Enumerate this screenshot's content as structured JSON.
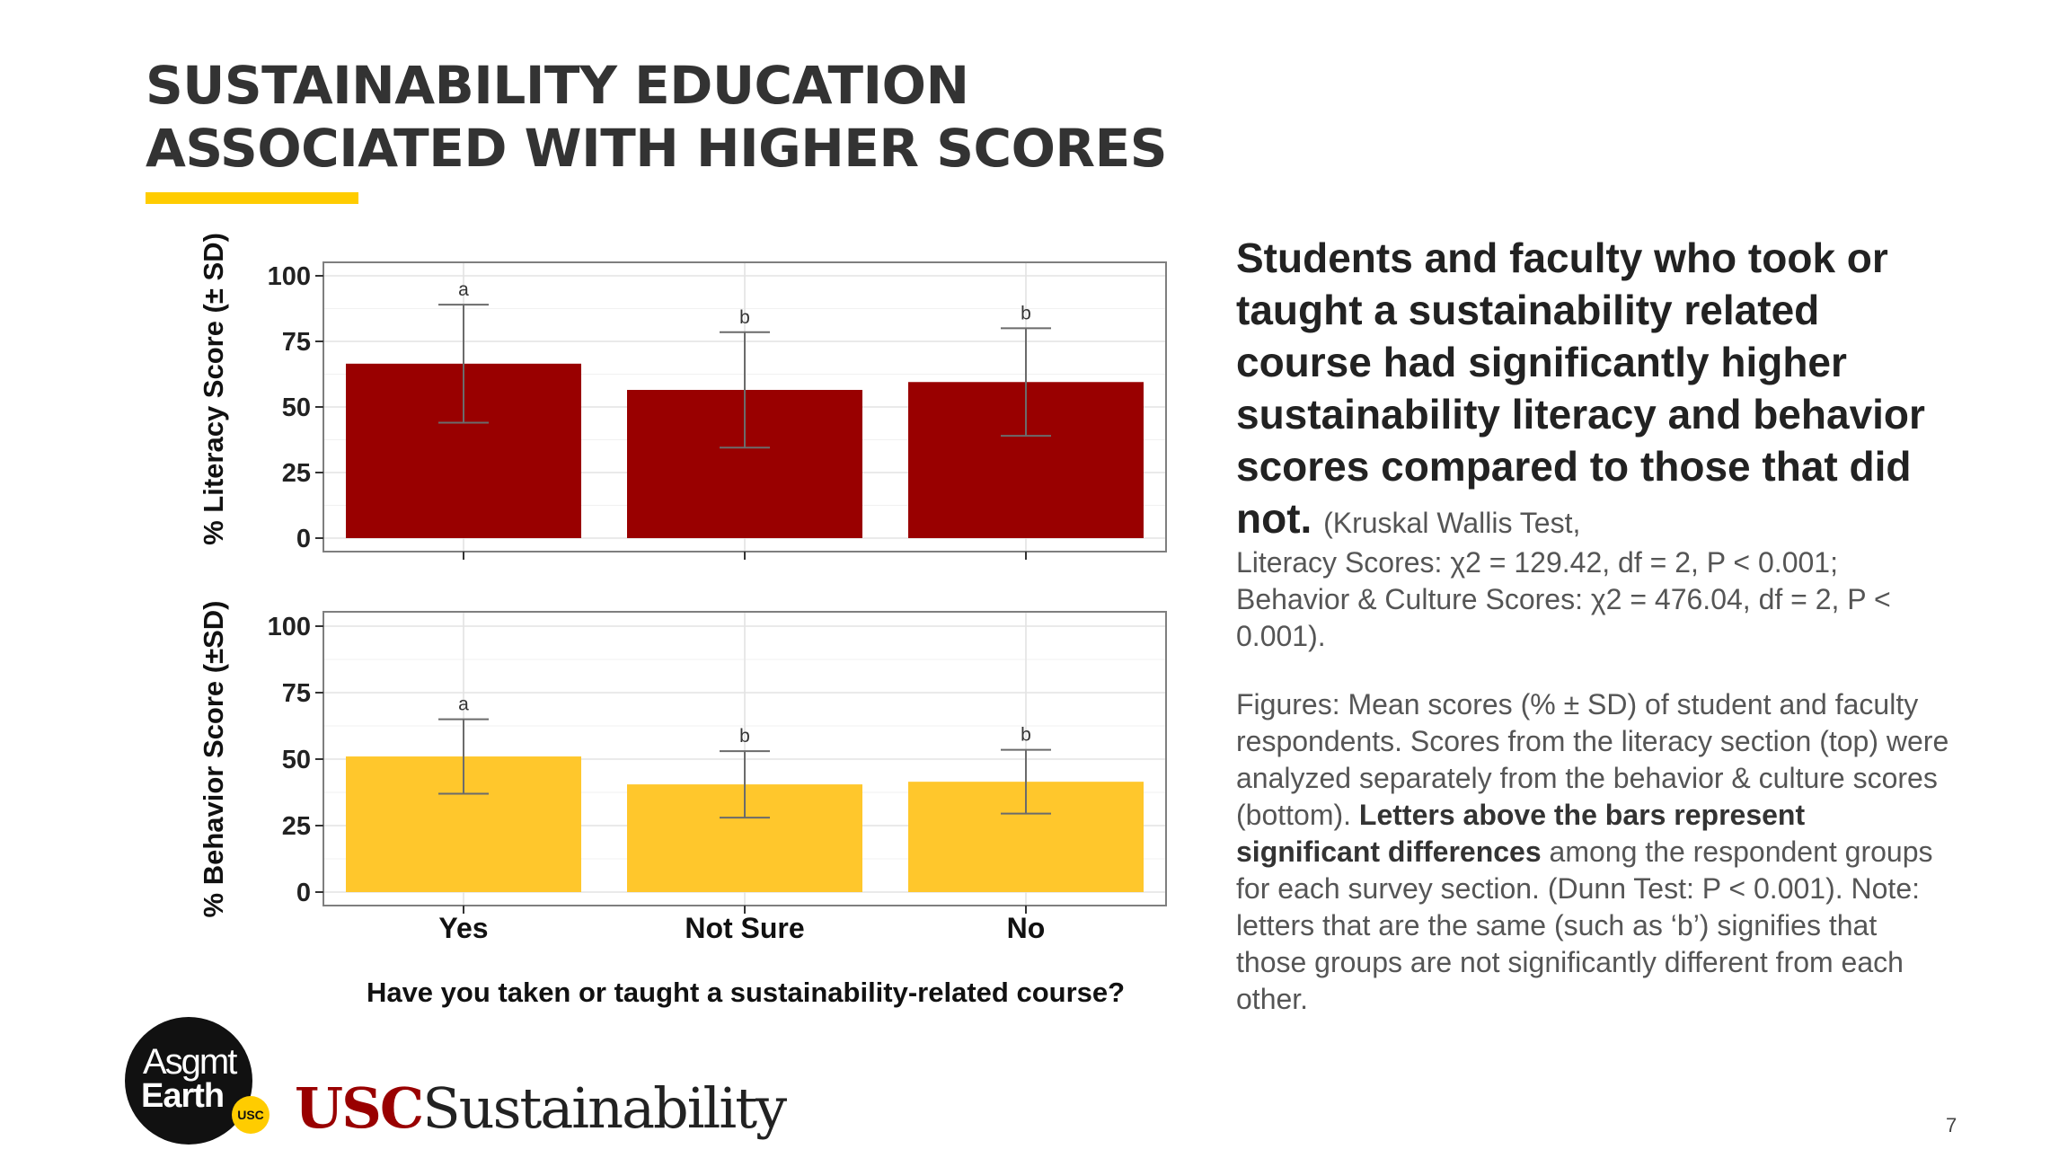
{
  "slide": {
    "title_line1": "SUSTAINABILITY EDUCATION",
    "title_line2": "ASSOCIATED WITH HIGHER SCORES",
    "page_number": "7",
    "accent_color": "#FFCC00"
  },
  "side_text": {
    "headline": "Students and faculty who took or taught a sustainability related course had significantly higher sustainability literacy and behavior scores compared to those that did not.",
    "stats_inline": "(Kruskal Wallis Test,",
    "stats_rest": "Literacy Scores: χ2 = 129.42, df = 2, P < 0.001; Behavior & Culture Scores: χ2 = 476.04, df = 2, P < 0.001).",
    "caption_part1": "Figures: Mean scores (% ± SD) of student and faculty respondents. Scores from the literacy section (top) were analyzed separately from the behavior & culture scores (bottom).",
    "caption_bold": "Letters above the bars represent significant differences",
    "caption_part2": "among the respondent groups for each survey section. (Dunn Test: P < 0.001). Note: letters that are the same (such as ‘b’) signifies that those groups are not significantly different from each other."
  },
  "logos": {
    "assignment_line1": "Asgmt",
    "assignment_line2": "Earth",
    "assignment_badge": "USC",
    "usc": "USC",
    "sustainability": "Sustainability"
  },
  "chart_data": {
    "type": "bar",
    "categories": [
      "Yes",
      "Not Sure",
      "No"
    ],
    "xlabel": "Have you taken or taught a sustainability-related course?",
    "ylim": [
      0,
      100
    ],
    "yticks": [
      0,
      25,
      50,
      75,
      100
    ],
    "panels": [
      {
        "name": "literacy",
        "ylabel": "% Literacy Score (± SD)",
        "color": "#990000",
        "values": [
          66.5,
          56.5,
          59.5
        ],
        "sd": [
          22.5,
          22,
          20.5
        ],
        "letters": [
          "a",
          "b",
          "b"
        ]
      },
      {
        "name": "behavior",
        "ylabel": "% Behavior Score (±SD)",
        "color": "#FFC72C",
        "values": [
          51,
          40.5,
          41.5
        ],
        "sd": [
          14,
          12.5,
          12
        ],
        "letters": [
          "a",
          "b",
          "b"
        ]
      }
    ]
  }
}
